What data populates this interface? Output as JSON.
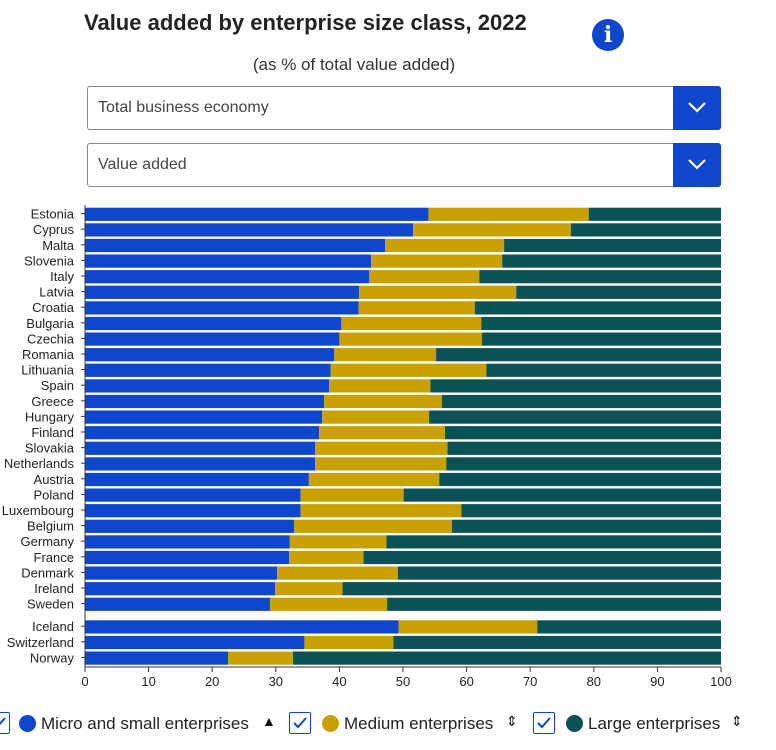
{
  "header": {
    "title": "Value added by enterprise size class, 2022",
    "subtitle": "(as % of total value added)"
  },
  "filters": {
    "economy": "Total business economy",
    "indicator": "Value added"
  },
  "legend": {
    "items": [
      {
        "label": "Micro and small enterprises",
        "color": "#0e47cb",
        "sort_icon": "triangle-up-icon",
        "sort_glyph": "▲"
      },
      {
        "label": "Medium enterprises",
        "color": "#c8a100",
        "sort_icon": "sort-both-icon",
        "sort_glyph": "⇕"
      },
      {
        "label": "Large enterprises",
        "color": "#0b5257",
        "sort_icon": "sort-both-icon",
        "sort_glyph": "⇕"
      }
    ]
  },
  "chart_data": {
    "type": "bar",
    "orientation": "horizontal",
    "stacked": true,
    "title": "Value added by enterprise size class, 2022",
    "subtitle": "(as % of total value added)",
    "xlim": [
      0,
      100
    ],
    "xticks": [
      0,
      10,
      20,
      30,
      40,
      50,
      60,
      70,
      80,
      90,
      100
    ],
    "categories": [
      "Estonia",
      "Cyprus",
      "Malta",
      "Slovenia",
      "Italy",
      "Latvia",
      "Croatia",
      "Bulgaria",
      "Czechia",
      "Romania",
      "Lithuania",
      "Spain",
      "Greece",
      "Hungary",
      "Finland",
      "Slovakia",
      "Netherlands",
      "Austria",
      "Poland",
      "Luxembourg",
      "Belgium",
      "Germany",
      "France",
      "Denmark",
      "Ireland",
      "Sweden",
      "Iceland",
      "Switzerland",
      "Norway"
    ],
    "group_break_before": "Iceland",
    "series": [
      {
        "name": "Micro and small enterprises",
        "color": "#0e47cb",
        "values": [
          54.0,
          51.6,
          47.2,
          45.0,
          44.7,
          43.1,
          43.0,
          40.3,
          40.0,
          39.2,
          38.6,
          38.4,
          37.6,
          37.3,
          36.8,
          36.2,
          36.2,
          35.2,
          33.9,
          33.9,
          32.9,
          32.2,
          32.1,
          30.2,
          29.9,
          29.1,
          49.3,
          34.5,
          22.5
        ]
      },
      {
        "name": "Medium enterprises",
        "color": "#c8a100",
        "values": [
          25.2,
          24.8,
          18.7,
          20.6,
          17.3,
          24.7,
          18.3,
          22.0,
          22.4,
          16.0,
          24.5,
          15.9,
          18.5,
          16.8,
          19.8,
          20.8,
          20.6,
          20.5,
          16.2,
          25.3,
          24.8,
          15.2,
          11.7,
          19.0,
          10.6,
          18.4,
          21.8,
          14.0,
          10.2
        ]
      },
      {
        "name": "Large enterprises",
        "color": "#0b5257",
        "values": [
          20.8,
          23.6,
          34.1,
          34.4,
          38.0,
          32.2,
          38.7,
          37.7,
          37.6,
          44.8,
          36.9,
          45.7,
          43.9,
          45.9,
          43.4,
          43.0,
          43.2,
          44.3,
          49.9,
          40.8,
          42.3,
          52.6,
          56.2,
          50.8,
          59.5,
          52.5,
          28.9,
          51.5,
          67.3
        ]
      }
    ]
  }
}
